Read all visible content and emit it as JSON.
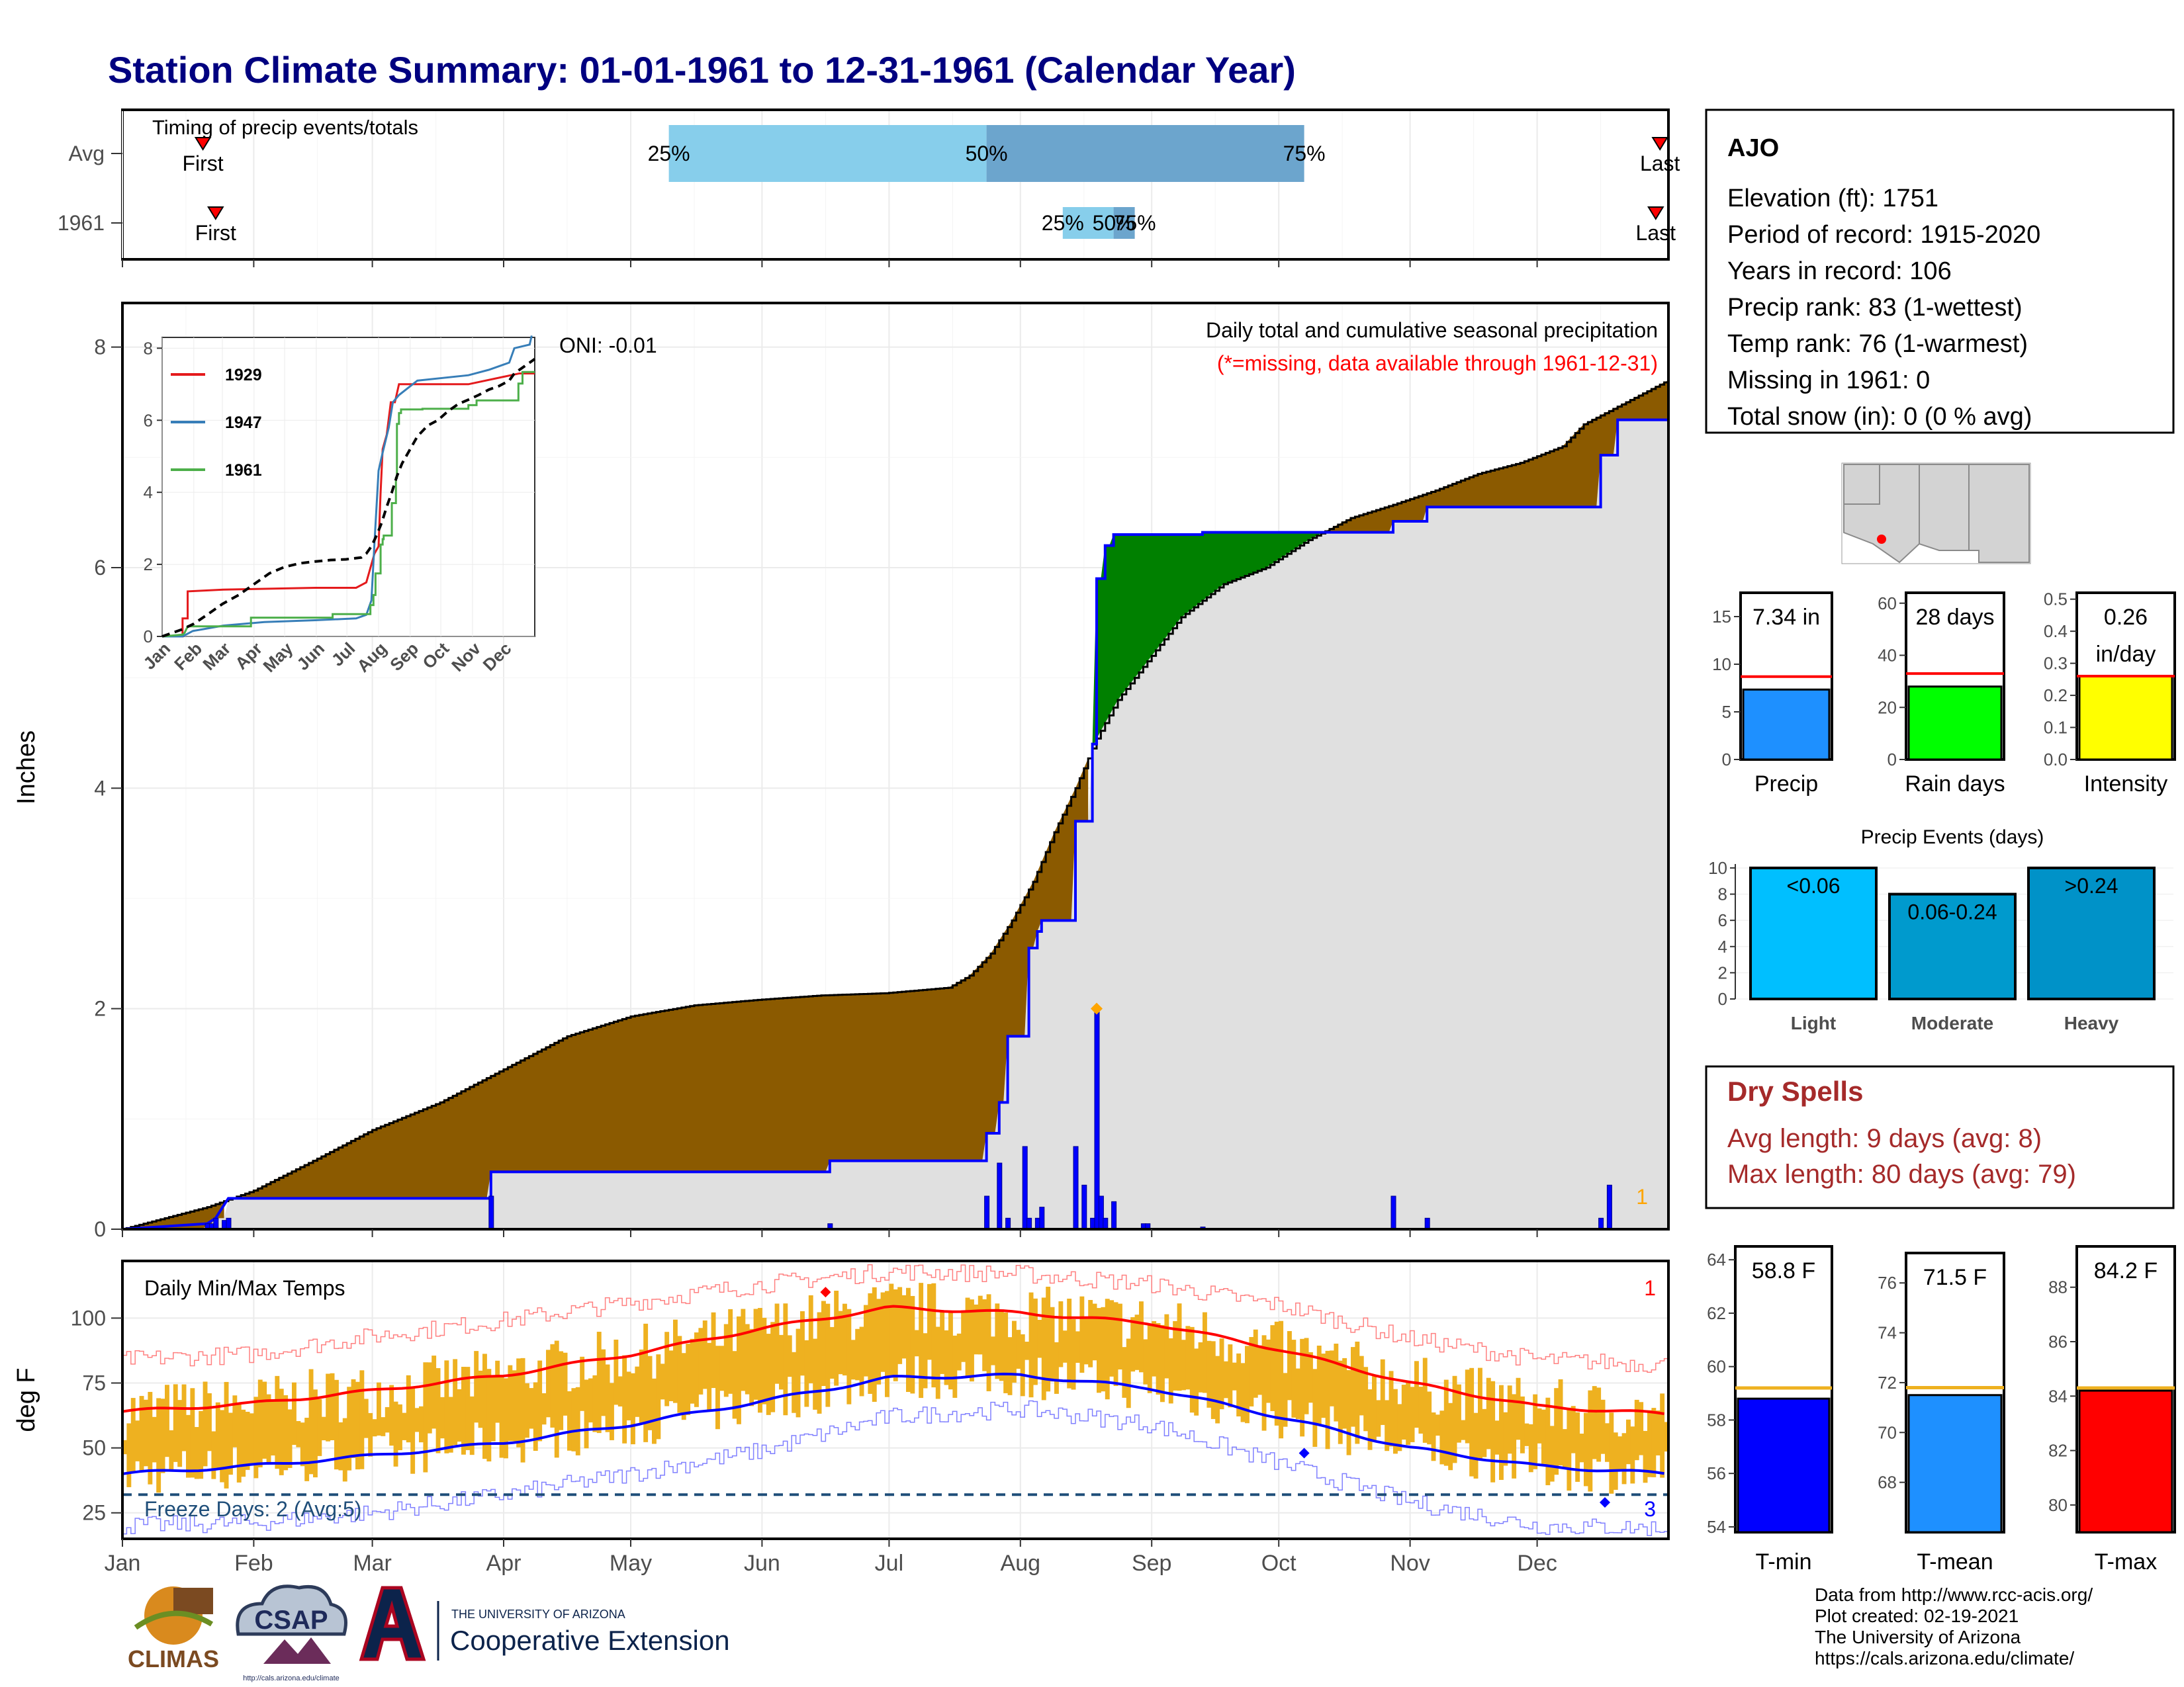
{
  "page": {
    "title": "Station Climate Summary: 01-01-1961 to 12-31-1961 (Calendar Year)",
    "colors": {
      "title": "#000080",
      "light_blue": "#87ceeb",
      "mid_blue": "#6ca5cd",
      "brown": "#8b5a00",
      "green": "#008000",
      "gray_fill": "#e0e0e0",
      "blue": "#0000ff",
      "red": "#ff0000",
      "orange": "#ffa500",
      "gold": "#eeb120",
      "dry_spell": "#a52a2a",
      "freeze_line": "#1f4e79"
    }
  },
  "chart_data": [
    {
      "id": "timing",
      "type": "bar",
      "title": "Timing of precip events/totals",
      "rows": [
        {
          "label": "Avg",
          "first_day": 19,
          "last_day": 363,
          "q25": 129,
          "q50": 204,
          "q75": 279,
          "first_label": "First",
          "last_label": "Last"
        },
        {
          "label": "1961",
          "first_day": 22,
          "last_day": 362,
          "q25": 222,
          "q50": 234,
          "q75": 239,
          "first_label": "First",
          "last_label": "Last"
        }
      ],
      "quartile_labels": [
        "25%",
        "50%",
        "75%"
      ],
      "xlim": [
        0,
        365
      ]
    },
    {
      "id": "precip",
      "type": "area",
      "title": "Daily total and cumulative seasonal precipitation",
      "subtitle": "(*=missing, data available through 1961-12-31)",
      "ylabel": "Inches",
      "ylim": [
        0,
        8.4
      ],
      "yticks": [
        0,
        2,
        4,
        6,
        8
      ],
      "oni": "ONI: -0.01",
      "corner_count": "1",
      "avg_cumulative": [
        [
          0,
          0
        ],
        [
          10,
          0.1
        ],
        [
          20,
          0.2
        ],
        [
          31,
          0.35
        ],
        [
          45,
          0.62
        ],
        [
          59,
          0.9
        ],
        [
          75,
          1.15
        ],
        [
          90,
          1.45
        ],
        [
          105,
          1.75
        ],
        [
          120,
          1.93
        ],
        [
          135,
          2.03
        ],
        [
          150,
          2.08
        ],
        [
          165,
          2.12
        ],
        [
          180,
          2.14
        ],
        [
          195,
          2.19
        ],
        [
          200,
          2.3
        ],
        [
          205,
          2.5
        ],
        [
          210,
          2.8
        ],
        [
          215,
          3.15
        ],
        [
          220,
          3.6
        ],
        [
          225,
          4.0
        ],
        [
          230,
          4.45
        ],
        [
          235,
          4.8
        ],
        [
          240,
          5.05
        ],
        [
          245,
          5.3
        ],
        [
          250,
          5.55
        ],
        [
          260,
          5.85
        ],
        [
          270,
          6.0
        ],
        [
          280,
          6.25
        ],
        [
          290,
          6.45
        ],
        [
          300,
          6.57
        ],
        [
          310,
          6.7
        ],
        [
          320,
          6.85
        ],
        [
          330,
          6.95
        ],
        [
          340,
          7.1
        ],
        [
          345,
          7.3
        ],
        [
          355,
          7.5
        ],
        [
          365,
          7.7
        ]
      ],
      "year_cumulative": [
        [
          0,
          0
        ],
        [
          20,
          0.05
        ],
        [
          22,
          0.1
        ],
        [
          25,
          0.28
        ],
        [
          87,
          0.28
        ],
        [
          87,
          0.52
        ],
        [
          167,
          0.52
        ],
        [
          167,
          0.62
        ],
        [
          204,
          0.62
        ],
        [
          204,
          0.87
        ],
        [
          207,
          0.87
        ],
        [
          207,
          1.15
        ],
        [
          209,
          1.15
        ],
        [
          209,
          1.75
        ],
        [
          214,
          1.75
        ],
        [
          214,
          2.55
        ],
        [
          216,
          2.55
        ],
        [
          216,
          2.7
        ],
        [
          217,
          2.7
        ],
        [
          217,
          2.8
        ],
        [
          225,
          2.8
        ],
        [
          225,
          3.7
        ],
        [
          229,
          3.7
        ],
        [
          229,
          4.4
        ],
        [
          230,
          4.4
        ],
        [
          230,
          5.9
        ],
        [
          232,
          5.9
        ],
        [
          232,
          6.2
        ],
        [
          234,
          6.2
        ],
        [
          234,
          6.3
        ],
        [
          255,
          6.3
        ],
        [
          255,
          6.32
        ],
        [
          300,
          6.32
        ],
        [
          300,
          6.42
        ],
        [
          308,
          6.42
        ],
        [
          308,
          6.55
        ],
        [
          349,
          6.55
        ],
        [
          349,
          7.02
        ],
        [
          353,
          7.02
        ],
        [
          353,
          7.34
        ],
        [
          365,
          7.34
        ]
      ],
      "daily_bars": [
        [
          20,
          0.05
        ],
        [
          21,
          0.05
        ],
        [
          22,
          0.1
        ],
        [
          24,
          0.08
        ],
        [
          25,
          0.1
        ],
        [
          87,
          0.3
        ],
        [
          167,
          0.05
        ],
        [
          204,
          0.3
        ],
        [
          207,
          0.6
        ],
        [
          209,
          0.1
        ],
        [
          213,
          0.75
        ],
        [
          214,
          0.1
        ],
        [
          216,
          0.1
        ],
        [
          217,
          0.2
        ],
        [
          225,
          0.75
        ],
        [
          227,
          0.4
        ],
        [
          229,
          0.1
        ],
        [
          230,
          2.0
        ],
        [
          231,
          0.3
        ],
        [
          232,
          0.1
        ],
        [
          234,
          0.25
        ],
        [
          241,
          0.05
        ],
        [
          242,
          0.05
        ],
        [
          255,
          0.02
        ],
        [
          300,
          0.3
        ],
        [
          308,
          0.1
        ],
        [
          349,
          0.1
        ],
        [
          351,
          0.4
        ]
      ],
      "max_marker": [
        230,
        2.0
      ]
    },
    {
      "id": "inset",
      "type": "line",
      "ylim": [
        0,
        8.3
      ],
      "yticks": [
        0,
        2,
        4,
        6,
        8
      ],
      "xtick_labels": [
        "Jan",
        "Feb",
        "Mar",
        "Apr",
        "May",
        "Jun",
        "Jul",
        "Aug",
        "Sep",
        "Oct",
        "Nov",
        "Dec"
      ],
      "series": [
        {
          "name": "1929",
          "color": "#e41a1c",
          "points": [
            [
              0,
              0
            ],
            [
              20,
              0
            ],
            [
              20,
              0.5
            ],
            [
              25,
              0.5
            ],
            [
              25,
              1.25
            ],
            [
              60,
              1.3
            ],
            [
              150,
              1.35
            ],
            [
              190,
              1.35
            ],
            [
              200,
              1.5
            ],
            [
              208,
              2.3
            ],
            [
              212,
              2.5
            ],
            [
              214,
              4
            ],
            [
              216,
              5.2
            ],
            [
              220,
              5.6
            ],
            [
              224,
              6.5
            ],
            [
              228,
              6.5
            ],
            [
              232,
              7.0
            ],
            [
              270,
              7.0
            ],
            [
              300,
              7.0
            ],
            [
              350,
              7.3
            ],
            [
              365,
              7.3
            ]
          ]
        },
        {
          "name": "1947",
          "color": "#377eb8",
          "points": [
            [
              0,
              0
            ],
            [
              20,
              0
            ],
            [
              30,
              0.15
            ],
            [
              40,
              0.2
            ],
            [
              60,
              0.3
            ],
            [
              100,
              0.4
            ],
            [
              150,
              0.45
            ],
            [
              190,
              0.5
            ],
            [
              200,
              0.6
            ],
            [
              205,
              1.0
            ],
            [
              208,
              2.6
            ],
            [
              212,
              4.6
            ],
            [
              216,
              5.1
            ],
            [
              222,
              5.8
            ],
            [
              226,
              6.5
            ],
            [
              232,
              6.7
            ],
            [
              250,
              7.1
            ],
            [
              300,
              7.25
            ],
            [
              320,
              7.4
            ],
            [
              340,
              7.6
            ],
            [
              345,
              8.0
            ],
            [
              360,
              8.1
            ],
            [
              362,
              8.35
            ]
          ]
        },
        {
          "name": "1961",
          "color": "#4daf4a",
          "points": "copy:year_cumulative"
        },
        {
          "name": "avg",
          "color": "#000000",
          "dash": true,
          "points": "copy:avg_cumulative"
        }
      ]
    },
    {
      "id": "summary_bars",
      "type": "bar",
      "panels": [
        {
          "label": "Precip",
          "value": 7.34,
          "value_label": "7.34 in",
          "avg": 8.7,
          "ylim": [
            0,
            17.5
          ],
          "yticks": [
            0,
            5,
            10,
            15
          ],
          "fill": "#1e90ff"
        },
        {
          "label": "Rain days",
          "value": 28,
          "value_label": "28 days",
          "avg": 33,
          "ylim": [
            0,
            64
          ],
          "yticks": [
            0,
            20,
            40,
            60
          ],
          "fill": "#00ff00"
        },
        {
          "label": "Intensity",
          "value": 0.26,
          "value_label": "0.26\nin/day",
          "avg": 0.26,
          "ylim": [
            0,
            0.52
          ],
          "yticks": [
            "0.0",
            "0.1",
            "0.2",
            "0.3",
            "0.4",
            "0.5"
          ],
          "fill": "#ffff00"
        }
      ]
    },
    {
      "id": "precip_events",
      "type": "bar",
      "title": "Precip Events (days)",
      "categories": [
        "Light",
        "Moderate",
        "Heavy"
      ],
      "values": [
        10,
        8,
        10
      ],
      "bar_labels": [
        "<0.06",
        "0.06-0.24",
        ">0.24"
      ],
      "colors": [
        "#00bfff",
        "#009acd",
        "#0092c8"
      ],
      "ylim": [
        0,
        10.3
      ],
      "yticks": [
        0,
        2,
        4,
        6,
        8,
        10
      ]
    },
    {
      "id": "temps",
      "type": "bar",
      "title": "Daily Min/Max Temps",
      "ylabel": "deg F",
      "ylim": [
        15,
        122
      ],
      "yticks": [
        25,
        50,
        75,
        100
      ],
      "xtick_labels": [
        "Jan",
        "Feb",
        "Mar",
        "Apr",
        "May",
        "Jun",
        "Jul",
        "Aug",
        "Sep",
        "Oct",
        "Nov",
        "Dec"
      ],
      "freeze_line": 32,
      "freeze_label": "Freeze Days: 2 (Avg:5)",
      "corner_top": "1",
      "corner_bottom": "3",
      "avg_max": [
        [
          0,
          64
        ],
        [
          30,
          67
        ],
        [
          59,
          72
        ],
        [
          90,
          78
        ],
        [
          120,
          86
        ],
        [
          151,
          96
        ],
        [
          181,
          104
        ],
        [
          212,
          102
        ],
        [
          243,
          98
        ],
        [
          273,
          88
        ],
        [
          304,
          75
        ],
        [
          334,
          66
        ],
        [
          365,
          63
        ]
      ],
      "avg_min": [
        [
          0,
          40
        ],
        [
          30,
          43
        ],
        [
          59,
          47
        ],
        [
          90,
          52
        ],
        [
          120,
          59
        ],
        [
          151,
          68
        ],
        [
          181,
          77
        ],
        [
          212,
          78
        ],
        [
          243,
          73
        ],
        [
          273,
          62
        ],
        [
          304,
          50
        ],
        [
          334,
          43
        ],
        [
          365,
          40
        ]
      ],
      "rec_max": [
        [
          0,
          84
        ],
        [
          30,
          86
        ],
        [
          59,
          93
        ],
        [
          90,
          99
        ],
        [
          120,
          106
        ],
        [
          151,
          113
        ],
        [
          181,
          118
        ],
        [
          212,
          117
        ],
        [
          243,
          113
        ],
        [
          273,
          105
        ],
        [
          304,
          92
        ],
        [
          334,
          84
        ],
        [
          365,
          82
        ]
      ],
      "rec_min": [
        [
          0,
          20
        ],
        [
          30,
          21
        ],
        [
          59,
          25
        ],
        [
          90,
          32
        ],
        [
          120,
          40
        ],
        [
          151,
          49
        ],
        [
          181,
          62
        ],
        [
          212,
          65
        ],
        [
          243,
          59
        ],
        [
          273,
          44
        ],
        [
          304,
          29
        ],
        [
          334,
          20
        ],
        [
          365,
          19
        ]
      ],
      "max_record_marker": [
        166,
        110
      ],
      "min_markers": [
        [
          279,
          48
        ],
        [
          350,
          29
        ]
      ]
    },
    {
      "id": "temp_summary",
      "type": "bar",
      "panels": [
        {
          "label": "T-min",
          "value": 58.8,
          "value_label": "58.8 F",
          "avg": 59.2,
          "ylim": [
            53.8,
            64.5
          ],
          "yticks": [
            54,
            56,
            58,
            60,
            62,
            64
          ],
          "fill": "#0000ff"
        },
        {
          "label": "T-mean",
          "value": 71.5,
          "value_label": "71.5 F",
          "avg": 71.8,
          "ylim": [
            66.0,
            77.2
          ],
          "yticks": [
            68,
            70,
            72,
            74,
            76
          ],
          "fill": "#1e90ff"
        },
        {
          "label": "T-max",
          "value": 84.2,
          "value_label": "84.2 F",
          "avg": 84.3,
          "ylim": [
            79.0,
            89.5
          ],
          "yticks": [
            80,
            82,
            84,
            86,
            88
          ],
          "fill": "#ff0000"
        }
      ]
    }
  ],
  "station": {
    "name": "AJO",
    "lines": [
      "Elevation (ft): 1751",
      "Period of record: 1915-2020",
      "Years in record: 106",
      "Precip rank: 83 (1-wettest)",
      "Temp rank: 76 (1-warmest)",
      "Missing in 1961: 0",
      "Total snow (in): 0 (0 % avg)"
    ]
  },
  "dry_spells": {
    "title": "Dry Spells",
    "avg_line": "Avg length: 9 days (avg: 8)",
    "max_line": "Max length: 80 days (avg: 79)"
  },
  "logos": {
    "climas": "CLIMAS",
    "csap": "CSAP",
    "csap_url": "http://cals.arizona.edu/climate",
    "ua_top": "THE UNIVERSITY OF ARIZONA",
    "ua_bottom": "Cooperative Extension"
  },
  "footer": {
    "lines": [
      "Data from http://www.rcc-acis.org/",
      "Plot created: 02-19-2021",
      "The University of Arizona",
      "https://cals.arizona.edu/climate/"
    ]
  }
}
